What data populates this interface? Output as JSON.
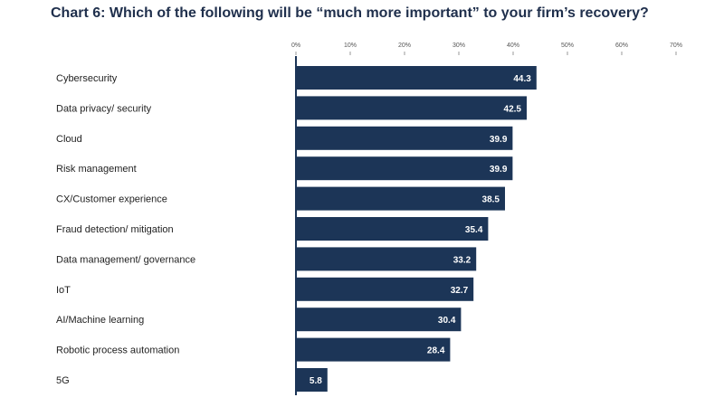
{
  "chart_data": {
    "type": "bar",
    "orientation": "horizontal",
    "title": "Chart 6: Which of the following will be “much more important” to your firm’s recovery?",
    "categories": [
      "Cybersecurity",
      "Data privacy/ security",
      "Cloud",
      "Risk management",
      "CX/Customer experience",
      "Fraud detection/ mitigation",
      "Data management/ governance",
      "IoT",
      "AI/Machine learning",
      "Robotic process automation",
      "5G"
    ],
    "values": [
      44.3,
      42.5,
      39.9,
      39.9,
      38.5,
      35.4,
      33.2,
      32.7,
      30.4,
      28.4,
      5.8
    ],
    "value_labels": [
      "44.3",
      "42.5",
      "39.9",
      "39.9",
      "38.5",
      "35.4",
      "33.2",
      "32.7",
      "30.4",
      "28.4",
      "5.8"
    ],
    "xlim": [
      0,
      70
    ],
    "x_ticks": [
      0,
      10,
      20,
      30,
      40,
      50,
      60,
      70
    ],
    "x_tick_labels": [
      "0%",
      "10%",
      "20%",
      "30%",
      "40%",
      "50%",
      "60%",
      "70%"
    ],
    "xaxis_position": "top",
    "grid": false,
    "legend": "none",
    "bar_color": "#1c3557",
    "label_color": "#ffffff"
  }
}
